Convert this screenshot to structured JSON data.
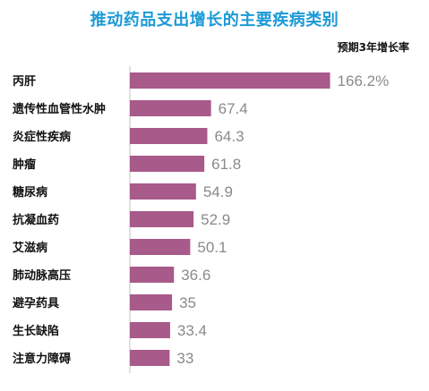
{
  "chart_data": {
    "type": "bar",
    "orientation": "horizontal",
    "title": "推动药品支出增长的主要疾病类别",
    "series": [
      {
        "name": "预期3年增长率",
        "values": [
          166.2,
          67.4,
          64.3,
          61.8,
          54.9,
          52.9,
          50.1,
          36.6,
          35,
          33.4,
          33
        ],
        "value_labels": [
          "166.2%",
          "67.4",
          "64.3",
          "61.8",
          "54.9",
          "52.9",
          "50.1",
          "36.6",
          "35",
          "33.4",
          "33"
        ]
      }
    ],
    "categories": [
      "丙肝",
      "遗传性血管性水肿",
      "炎症性疾病",
      "肿瘤",
      "糖尿病",
      "抗凝血药",
      "艾滋病",
      "肺动脉高压",
      "避孕药具",
      "生长缺陷",
      "注意力障碍"
    ],
    "colors": {
      "bar": "#a85a8a",
      "value_label": "#8a8a8a",
      "title": "#1c9ad6",
      "axis": "#bfbfbf"
    },
    "grid": false,
    "legend_placement": "top-right"
  }
}
